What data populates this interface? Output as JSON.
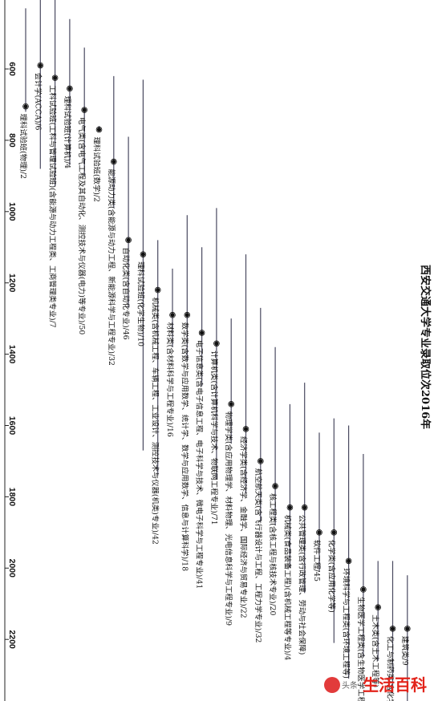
{
  "chart_data": {
    "type": "interval",
    "title": "西安交通大学专业录取位次2016年",
    "axis": {
      "tick_values": [
        600,
        800,
        1000,
        1200,
        1400,
        1600,
        1800,
        2000,
        2200
      ]
    },
    "series": [
      {
        "label": "理科试验班(物理)/2",
        "min": 430,
        "max": 720,
        "rank": 705
      },
      {
        "label": "会计学(ACCA)/6",
        "min": 390,
        "max": 880,
        "rank": 590
      },
      {
        "label": "工科试验班(工科与管理试验班)(含能源与动力工程类、工商管理类专业)/7",
        "min": 390,
        "max": 930,
        "rank": 625
      },
      {
        "label": "理科试验班(计算机)/4",
        "min": 460,
        "max": 870,
        "rank": 655
      },
      {
        "label": "电气类(含电气工程及其自动化、测控技术与仪器(电力)等专业)/50",
        "min": 540,
        "max": 900,
        "rank": 715
      },
      {
        "label": "理科试验班(数学)/2",
        "min": 760,
        "max": 770,
        "rank": 770
      },
      {
        "label": "能源动力类(含能源与动力工程、新能源科学与工程专业)/32",
        "min": 620,
        "max": 990,
        "rank": 860
      },
      {
        "label": "自动化类(含自动化专业)/46",
        "min": 790,
        "max": 1270,
        "rank": 1080
      },
      {
        "label": "理科试验班(化学生物)/10",
        "min": 630,
        "max": 1670,
        "rank": 1120
      },
      {
        "label": "机械类(含机械工程、车辆工程、工业设计、测控技术与仪器(机类)专业)/42",
        "min": 1080,
        "max": 1740,
        "rank": 1220
      },
      {
        "label": "材料类(含材料科学与工程专业)/16",
        "min": 1160,
        "max": 1380,
        "rank": 1290
      },
      {
        "label": "数学类(含数学与应用数学、统计学、数学与应用数学、信息与计算科学)/18",
        "min": 1010,
        "max": 1420,
        "rank": 1290
      },
      {
        "label": "电子信息类(含电子信息工程、电子科学与技术、微电子科学与工程专业)/41",
        "min": 1100,
        "max": 1490,
        "rank": 1340
      },
      {
        "label": "计算机类(含计算机科学与技术、物联网工程专业)/71",
        "min": 990,
        "max": 1750,
        "rank": 1370
      },
      {
        "label": "物理学类(含应用物理学、材料物理、光电信息科学与工程专业)/9",
        "min": 1300,
        "max": 1650,
        "rank": 1540
      },
      {
        "label": "经济学类(含经济学、金融学、国际经济与贸易专业)/22",
        "min": 1120,
        "max": 1790,
        "rank": 1610
      },
      {
        "label": "航空航天类(含飞行器设计与工程、工程力学专业)/32",
        "min": 1270,
        "max": 1870,
        "rank": 1700
      },
      {
        "label": "核工程类(含核工程与核技术专业)/20",
        "min": 1380,
        "max": 1880,
        "rank": 1770
      },
      {
        "label": "机械类(食品装备工程)(含机械工程等专业)/4",
        "min": 1540,
        "max": 2000,
        "rank": 1830
      },
      {
        "label": "公共管理类(含行政管理、劳动与社会保障)",
        "min": 1480,
        "max": 2070,
        "rank": 1830
      },
      {
        "label": "软件工程/45",
        "min": 1620,
        "max": 2010,
        "rank": 1900
      },
      {
        "label": "化学类(含应用化学等)",
        "min": 1580,
        "max": 2210,
        "rank": 1900
      },
      {
        "label": "环境科学与工程类(含环境工程等)",
        "min": 1600,
        "max": 2310,
        "rank": 1980
      },
      {
        "label": "生物医学工程类(含生物医学工程等)",
        "min": 1680,
        "max": 2250,
        "rank": 2060
      },
      {
        "label": "土木类(含土木工程等)",
        "min": 1980,
        "max": 2260,
        "rank": 2110
      },
      {
        "label": "化工与制药类(含化学工程等)",
        "min": 1980,
        "max": 2350,
        "rank": 2170
      },
      {
        "label": "建筑类/9",
        "min": 2020,
        "max": 2380,
        "rank": 2170
      }
    ]
  },
  "watermark": {
    "prefix": "头条",
    "brand": "生活百科"
  }
}
